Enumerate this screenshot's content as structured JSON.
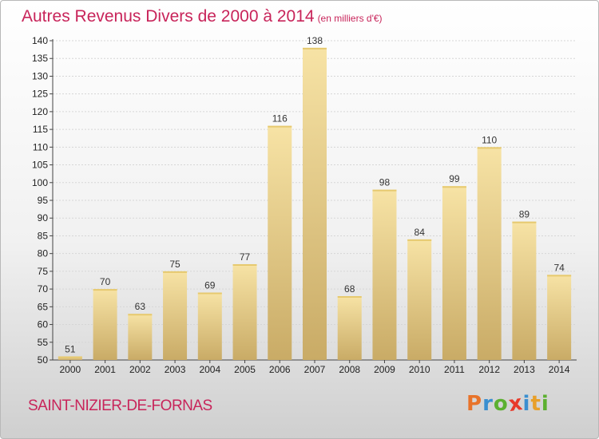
{
  "header": {
    "title": "Autres Revenus Divers de 2000 à 2014",
    "unit": "(en milliers d'€)"
  },
  "footer": {
    "commune": "SAINT-NIZIER-DE-FORNAS",
    "logo_letters": [
      "P",
      "r",
      "o",
      "x",
      "i",
      "t",
      "i"
    ],
    "logo_colors": [
      "#e8732a",
      "#3a8fd0",
      "#5cb030",
      "#e83a2a",
      "#3a8fd0",
      "#e8a02a",
      "#5cb030"
    ]
  },
  "colors": {
    "title": "#c8245a",
    "bar_light": "#f7e3a5",
    "bar_dark": "#c9ab66"
  },
  "chart_data": {
    "type": "bar",
    "title": "Autres Revenus Divers de 2000 à 2014",
    "categories": [
      "2000",
      "2001",
      "2002",
      "2003",
      "2004",
      "2005",
      "2006",
      "2007",
      "2008",
      "2009",
      "2010",
      "2011",
      "2012",
      "2013",
      "2014"
    ],
    "values": [
      51,
      70,
      63,
      75,
      69,
      77,
      116,
      138,
      68,
      98,
      84,
      99,
      110,
      89,
      74
    ],
    "ylim": [
      50,
      140
    ],
    "yticks": [
      50,
      55,
      60,
      65,
      70,
      75,
      80,
      85,
      90,
      95,
      100,
      105,
      110,
      115,
      120,
      125,
      130,
      135,
      140
    ],
    "grid": true,
    "legend": "none"
  }
}
